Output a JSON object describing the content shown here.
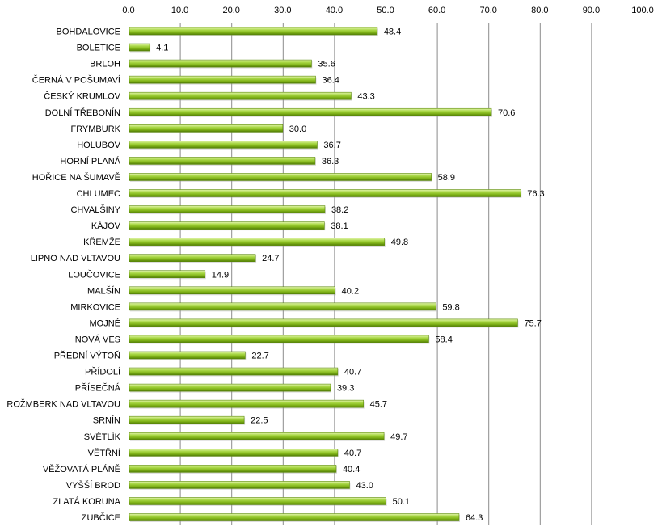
{
  "chart_data": {
    "type": "bar",
    "orientation": "horizontal",
    "x_axis_position": "top",
    "xlim": [
      0,
      100
    ],
    "x_ticks": [
      "0.0",
      "10.0",
      "20.0",
      "30.0",
      "40.0",
      "50.0",
      "60.0",
      "70.0",
      "80.0",
      "90.0",
      "100.0"
    ],
    "grid": true,
    "bar_color": "#8fc31f",
    "categories": [
      "BOHDALOVICE",
      "BOLETICE",
      "BRLOH",
      "ČERNÁ V POŠUMAVÍ",
      "ČESKÝ KRUMLOV",
      "DOLNÍ TŘEBONÍN",
      "FRYMBURK",
      "HOLUBOV",
      "HORNÍ PLANÁ",
      "HOŘICE NA ŠUMAVĚ",
      "CHLUMEC",
      "CHVALŠINY",
      "KÁJOV",
      "KŘEMŽE",
      "LIPNO NAD VLTAVOU",
      "LOUČOVICE",
      "MALŠÍN",
      "MIRKOVICE",
      "MOJNÉ",
      "NOVÁ VES",
      "PŘEDNÍ VÝTOŇ",
      "PŘÍDOLÍ",
      "PŘÍSEČNÁ",
      "ROŽMBERK NAD VLTAVOU",
      "SRNÍN",
      "SVĚTLÍK",
      "VĚTŘNÍ",
      "VĚŽOVATÁ PLÁNĚ",
      "VYŠŠÍ BROD",
      "ZLATÁ KORUNA",
      "ZUBČICE"
    ],
    "values": [
      48.4,
      4.1,
      35.6,
      36.4,
      43.3,
      70.6,
      30.0,
      36.7,
      36.3,
      58.9,
      76.3,
      38.2,
      38.1,
      49.8,
      24.7,
      14.9,
      40.2,
      59.8,
      75.7,
      58.4,
      22.7,
      40.7,
      39.3,
      45.7,
      22.5,
      49.7,
      40.7,
      40.4,
      43.0,
      50.1,
      64.3
    ],
    "value_labels": [
      "48.4",
      "4.1",
      "35.6",
      "36.4",
      "43.3",
      "70.6",
      "30.0",
      "36.7",
      "36.3",
      "58.9",
      "76.3",
      "38.2",
      "38.1",
      "49.8",
      "24.7",
      "14.9",
      "40.2",
      "59.8",
      "75.7",
      "58.4",
      "22.7",
      "40.7",
      "39.3",
      "45.7",
      "22.5",
      "49.7",
      "40.7",
      "40.4",
      "43.0",
      "50.1",
      "64.3"
    ]
  }
}
